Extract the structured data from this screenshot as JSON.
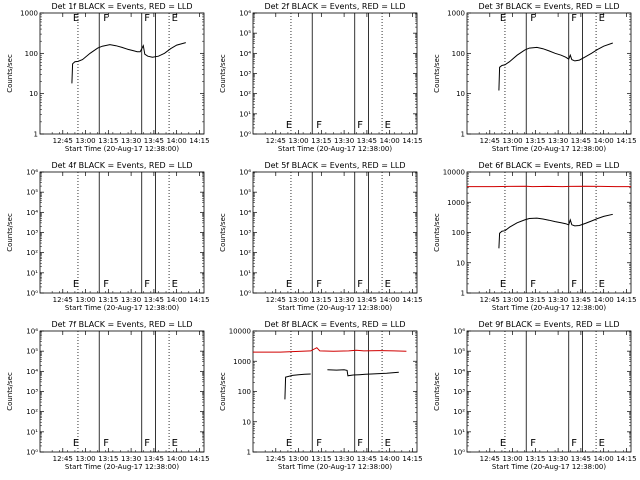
{
  "page": {
    "background": "#ffffff"
  },
  "colors": {
    "events": "#000000",
    "lld": "#d00000",
    "frame": "#000000"
  },
  "common": {
    "x_ticks": [
      "12:45",
      "13:00",
      "13:15",
      "13:30",
      "13:45",
      "14:00",
      "14:15"
    ],
    "x_range_minutes": [
      -8,
      100
    ],
    "xlabel": "Start Time (20-Aug-17 12:38:00)",
    "ylabel": "Counts/sec"
  },
  "chart_data": [
    {
      "type": "line",
      "title": "Det 1f BLACK = Events, RED = LLD",
      "ylog": true,
      "ylim": [
        1,
        1000
      ],
      "y_ticks": [
        "1",
        "10",
        "100",
        "1000"
      ],
      "vlines_dotted": [
        17,
        77
      ],
      "vlines_solid": [
        31,
        59,
        68
      ],
      "markers": [
        {
          "label": "E",
          "x": 13
        },
        {
          "label": "F",
          "x": 33
        },
        {
          "label": "F",
          "x": 60
        },
        {
          "label": "E",
          "x": 78
        }
      ],
      "series": [
        {
          "color": "#000000",
          "points": [
            [
              13,
              18
            ],
            [
              13.5,
              55
            ],
            [
              15,
              62
            ],
            [
              17,
              63
            ],
            [
              20,
              70
            ],
            [
              25,
              100
            ],
            [
              30,
              135
            ],
            [
              33,
              150
            ],
            [
              38,
              165
            ],
            [
              42,
              155
            ],
            [
              46,
              140
            ],
            [
              50,
              125
            ],
            [
              54,
              115
            ],
            [
              56,
              110
            ],
            [
              58,
              110
            ],
            [
              60,
              155
            ],
            [
              61,
              95
            ],
            [
              63,
              85
            ],
            [
              66,
              80
            ],
            [
              70,
              85
            ],
            [
              74,
              100
            ],
            [
              78,
              130
            ],
            [
              82,
              160
            ],
            [
              88,
              185
            ]
          ]
        }
      ]
    },
    {
      "type": "line",
      "title": "Det 2f BLACK = Events, RED = LLD",
      "ylog": true,
      "ylim": [
        1,
        1000000
      ],
      "y_ticks": [
        "10⁰",
        "10¹",
        "10²",
        "10³",
        "10⁴",
        "10⁵",
        "10⁶"
      ],
      "vlines_dotted": [
        17,
        77
      ],
      "vlines_solid": [
        31,
        59,
        68
      ],
      "markers": [
        {
          "label": "E",
          "x": 13
        },
        {
          "label": "F",
          "x": 33
        },
        {
          "label": "F",
          "x": 60
        },
        {
          "label": "E",
          "x": 78
        }
      ],
      "series": []
    },
    {
      "type": "line",
      "title": "Det 3f BLACK = Events, RED = LLD",
      "ylog": true,
      "ylim": [
        1,
        1000
      ],
      "y_ticks": [
        "1",
        "10",
        "100",
        "1000"
      ],
      "vlines_dotted": [
        17,
        77
      ],
      "vlines_solid": [
        31,
        59,
        68
      ],
      "markers": [
        {
          "label": "E",
          "x": 13
        },
        {
          "label": "F",
          "x": 33
        },
        {
          "label": "F",
          "x": 60
        },
        {
          "label": "E",
          "x": 78
        }
      ],
      "series": [
        {
          "color": "#000000",
          "points": [
            [
              13,
              12
            ],
            [
              13.5,
              45
            ],
            [
              15,
              50
            ],
            [
              17,
              52
            ],
            [
              20,
              62
            ],
            [
              25,
              90
            ],
            [
              30,
              120
            ],
            [
              33,
              135
            ],
            [
              38,
              140
            ],
            [
              42,
              130
            ],
            [
              46,
              115
            ],
            [
              50,
              100
            ],
            [
              54,
              90
            ],
            [
              57,
              80
            ],
            [
              59,
              72
            ],
            [
              60,
              90
            ],
            [
              61,
              70
            ],
            [
              63,
              65
            ],
            [
              66,
              68
            ],
            [
              70,
              82
            ],
            [
              74,
              100
            ],
            [
              78,
              125
            ],
            [
              82,
              150
            ],
            [
              88,
              180
            ]
          ]
        }
      ]
    },
    {
      "type": "line",
      "title": "Det 4f BLACK = Events, RED = LLD",
      "ylog": true,
      "ylim": [
        1,
        1000000
      ],
      "y_ticks": [
        "10⁰",
        "10¹",
        "10²",
        "10³",
        "10⁴",
        "10⁵",
        "10⁶"
      ],
      "vlines_dotted": [
        17,
        77
      ],
      "vlines_solid": [
        31,
        59,
        68
      ],
      "markers": [
        {
          "label": "E",
          "x": 13
        },
        {
          "label": "F",
          "x": 33
        },
        {
          "label": "F",
          "x": 60
        },
        {
          "label": "E",
          "x": 78
        }
      ],
      "series": []
    },
    {
      "type": "line",
      "title": "Det 5f BLACK = Events, RED = LLD",
      "ylog": true,
      "ylim": [
        1,
        1000000
      ],
      "y_ticks": [
        "10⁰",
        "10¹",
        "10²",
        "10³",
        "10⁴",
        "10⁵",
        "10⁶"
      ],
      "vlines_dotted": [
        17,
        77
      ],
      "vlines_solid": [
        31,
        59,
        68
      ],
      "markers": [
        {
          "label": "E",
          "x": 13
        },
        {
          "label": "F",
          "x": 33
        },
        {
          "label": "F",
          "x": 60
        },
        {
          "label": "E",
          "x": 78
        }
      ],
      "series": []
    },
    {
      "type": "line",
      "title": "Det 6f BLACK = Events, RED = LLD",
      "ylog": true,
      "ylim": [
        1,
        10000
      ],
      "y_ticks": [
        "1",
        "10",
        "100",
        "1000",
        "10000"
      ],
      "vlines_dotted": [
        17,
        77
      ],
      "vlines_solid": [
        31,
        59,
        68
      ],
      "markers": [
        {
          "label": "E",
          "x": 13
        },
        {
          "label": "F",
          "x": 33
        },
        {
          "label": "F",
          "x": 60
        },
        {
          "label": "E",
          "x": 78
        }
      ],
      "series": [
        {
          "color": "#d00000",
          "points": [
            [
              -8,
              3300
            ],
            [
              10,
              3300
            ],
            [
              20,
              3350
            ],
            [
              31,
              3400
            ],
            [
              35,
              3300
            ],
            [
              45,
              3350
            ],
            [
              55,
              3300
            ],
            [
              60,
              3350
            ],
            [
              70,
              3400
            ],
            [
              80,
              3350
            ],
            [
              90,
              3300
            ],
            [
              100,
              3300
            ]
          ]
        },
        {
          "color": "#000000",
          "points": [
            [
              13,
              30
            ],
            [
              13.5,
              95
            ],
            [
              15,
              110
            ],
            [
              17,
              115
            ],
            [
              20,
              150
            ],
            [
              25,
              210
            ],
            [
              30,
              260
            ],
            [
              33,
              290
            ],
            [
              38,
              300
            ],
            [
              42,
              280
            ],
            [
              46,
              255
            ],
            [
              50,
              230
            ],
            [
              54,
              210
            ],
            [
              57,
              195
            ],
            [
              59,
              180
            ],
            [
              60,
              260
            ],
            [
              61,
              180
            ],
            [
              63,
              165
            ],
            [
              66,
              170
            ],
            [
              70,
              200
            ],
            [
              74,
              240
            ],
            [
              78,
              290
            ],
            [
              82,
              340
            ],
            [
              88,
              400
            ]
          ]
        }
      ]
    },
    {
      "type": "line",
      "title": "Det 7f BLACK = Events, RED = LLD",
      "ylog": true,
      "ylim": [
        1,
        1000000
      ],
      "y_ticks": [
        "10⁰",
        "10¹",
        "10²",
        "10³",
        "10⁴",
        "10⁵",
        "10⁶"
      ],
      "vlines_dotted": [
        17,
        77
      ],
      "vlines_solid": [
        31,
        59,
        68
      ],
      "markers": [
        {
          "label": "E",
          "x": 13
        },
        {
          "label": "F",
          "x": 33
        },
        {
          "label": "F",
          "x": 60
        },
        {
          "label": "E",
          "x": 78
        }
      ],
      "series": []
    },
    {
      "type": "line",
      "title": "Det 8f BLACK = Events, RED = LLD",
      "ylog": true,
      "ylim": [
        1,
        10000
      ],
      "y_ticks": [
        "1",
        "10",
        "100",
        "1000",
        "10000"
      ],
      "vlines_dotted": [
        17,
        77
      ],
      "vlines_solid": [
        31,
        59,
        68
      ],
      "markers": [
        {
          "label": "E",
          "x": 13
        },
        {
          "label": "F",
          "x": 33
        },
        {
          "label": "F",
          "x": 60
        },
        {
          "label": "E",
          "x": 78
        }
      ],
      "series": [
        {
          "color": "#d00000",
          "points": [
            [
              -8,
              2000
            ],
            [
              10,
              2000
            ],
            [
              20,
              2100
            ],
            [
              30,
              2200
            ],
            [
              34,
              2800
            ],
            [
              36,
              2200
            ],
            [
              45,
              2150
            ],
            [
              55,
              2200
            ],
            [
              60,
              2300
            ],
            [
              65,
              2200
            ],
            [
              75,
              2250
            ],
            [
              85,
              2200
            ],
            [
              93,
              2150
            ]
          ]
        },
        {
          "color": "#000000",
          "points": [
            [
              13,
              55
            ],
            [
              13.5,
              300
            ],
            [
              18,
              340
            ],
            [
              22,
              360
            ],
            [
              26,
              370
            ],
            [
              30,
              380
            ],
            [
              30.5,
              null
            ],
            [
              41,
              520
            ],
            [
              47,
              510
            ],
            [
              52,
              520
            ],
            [
              54,
              500
            ],
            [
              54.5,
              330
            ],
            [
              58,
              350
            ],
            [
              62,
              360
            ],
            [
              66,
              370
            ],
            [
              70,
              380
            ],
            [
              75,
              390
            ],
            [
              80,
              400
            ],
            [
              85,
              420
            ],
            [
              88,
              430
            ]
          ]
        }
      ]
    },
    {
      "type": "line",
      "title": "Det 9f BLACK = Events, RED = LLD",
      "ylog": true,
      "ylim": [
        1,
        1000000
      ],
      "y_ticks": [
        "10⁰",
        "10¹",
        "10²",
        "10³",
        "10⁴",
        "10⁵",
        "10⁶"
      ],
      "vlines_dotted": [
        17,
        77
      ],
      "vlines_solid": [
        31,
        59,
        68
      ],
      "markers": [
        {
          "label": "E",
          "x": 13
        },
        {
          "label": "F",
          "x": 33
        },
        {
          "label": "F",
          "x": 60
        },
        {
          "label": "E",
          "x": 78
        }
      ],
      "series": []
    }
  ]
}
